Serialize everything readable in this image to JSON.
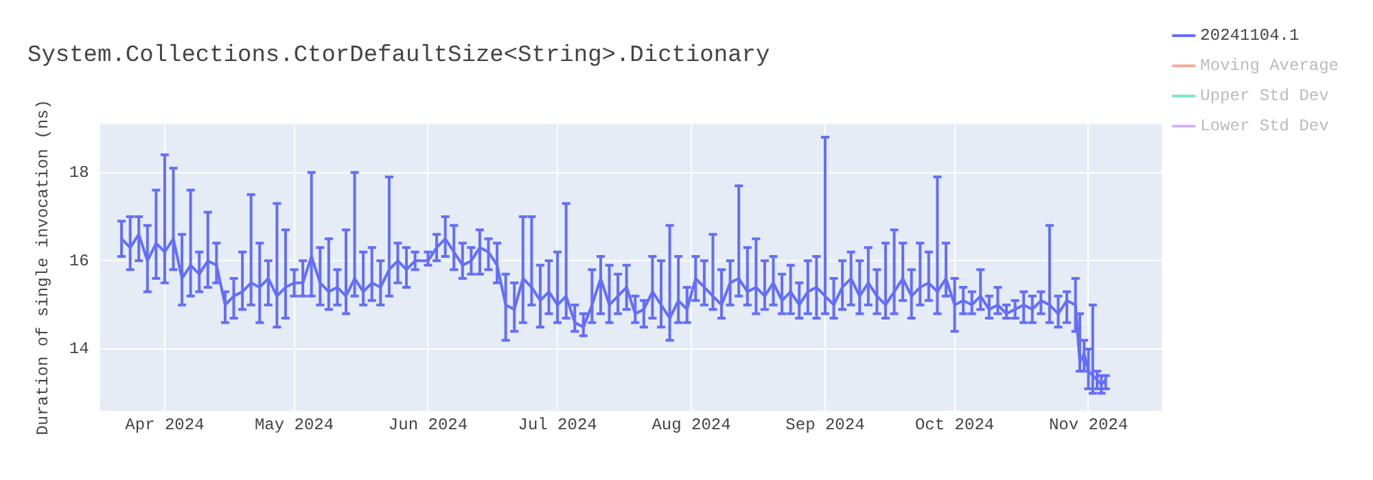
{
  "chart_data": {
    "type": "line",
    "title": "System.Collections.CtorDefaultSize<String>.Dictionary",
    "ylabel": "Duration of single invocation (ns)",
    "xlim": [
      "2024-03-17",
      "2024-11-18"
    ],
    "xticks": [
      {
        "value": "2024-04-01",
        "label": "Apr 2024"
      },
      {
        "value": "2024-05-01",
        "label": "May 2024"
      },
      {
        "value": "2024-06-01",
        "label": "Jun 2024"
      },
      {
        "value": "2024-07-01",
        "label": "Jul 2024"
      },
      {
        "value": "2024-08-01",
        "label": "Aug 2024"
      },
      {
        "value": "2024-09-01",
        "label": "Sep 2024"
      },
      {
        "value": "2024-10-01",
        "label": "Oct 2024"
      },
      {
        "value": "2024-11-01",
        "label": "Nov 2024"
      }
    ],
    "ylim": [
      12.6,
      19.1
    ],
    "yticks": [
      14,
      16,
      18
    ],
    "grid": true,
    "legend": "right",
    "marker": "none",
    "line_style": "solid",
    "x": [
      "2024-03-22",
      "2024-03-24",
      "2024-03-26",
      "2024-03-28",
      "2024-03-30",
      "2024-04-01",
      "2024-04-03",
      "2024-04-05",
      "2024-04-07",
      "2024-04-09",
      "2024-04-11",
      "2024-04-13",
      "2024-04-15",
      "2024-04-17",
      "2024-04-19",
      "2024-04-21",
      "2024-04-23",
      "2024-04-25",
      "2024-04-27",
      "2024-04-29",
      "2024-05-01",
      "2024-05-03",
      "2024-05-05",
      "2024-05-07",
      "2024-05-09",
      "2024-05-11",
      "2024-05-13",
      "2024-05-15",
      "2024-05-17",
      "2024-05-19",
      "2024-05-21",
      "2024-05-23",
      "2024-05-25",
      "2024-05-27",
      "2024-05-29",
      "2024-06-01",
      "2024-06-03",
      "2024-06-05",
      "2024-06-07",
      "2024-06-09",
      "2024-06-11",
      "2024-06-13",
      "2024-06-15",
      "2024-06-17",
      "2024-06-19",
      "2024-06-21",
      "2024-06-23",
      "2024-06-25",
      "2024-06-27",
      "2024-06-29",
      "2024-07-01",
      "2024-07-03",
      "2024-07-05",
      "2024-07-07",
      "2024-07-09",
      "2024-07-11",
      "2024-07-13",
      "2024-07-15",
      "2024-07-17",
      "2024-07-19",
      "2024-07-21",
      "2024-07-23",
      "2024-07-25",
      "2024-07-27",
      "2024-07-29",
      "2024-07-31",
      "2024-08-02",
      "2024-08-04",
      "2024-08-06",
      "2024-08-08",
      "2024-08-10",
      "2024-08-12",
      "2024-08-14",
      "2024-08-16",
      "2024-08-18",
      "2024-08-20",
      "2024-08-22",
      "2024-08-24",
      "2024-08-26",
      "2024-08-28",
      "2024-08-30",
      "2024-09-01",
      "2024-09-03",
      "2024-09-05",
      "2024-09-07",
      "2024-09-09",
      "2024-09-11",
      "2024-09-13",
      "2024-09-15",
      "2024-09-17",
      "2024-09-19",
      "2024-09-21",
      "2024-09-23",
      "2024-09-25",
      "2024-09-27",
      "2024-09-29",
      "2024-10-01",
      "2024-10-03",
      "2024-10-05",
      "2024-10-07",
      "2024-10-09",
      "2024-10-11",
      "2024-10-13",
      "2024-10-15",
      "2024-10-17",
      "2024-10-19",
      "2024-10-21",
      "2024-10-23",
      "2024-10-25",
      "2024-10-27",
      "2024-10-29",
      "2024-10-30",
      "2024-10-31",
      "2024-11-01",
      "2024-11-02",
      "2024-11-03",
      "2024-11-04",
      "2024-11-05"
    ],
    "series": [
      {
        "name": "20241104.1",
        "color": "#636efa",
        "values": [
          16.5,
          16.3,
          16.6,
          16.0,
          16.4,
          16.2,
          16.5,
          15.6,
          15.9,
          15.7,
          16.0,
          15.9,
          15.0,
          15.2,
          15.3,
          15.5,
          15.4,
          15.6,
          15.2,
          15.4,
          15.5,
          15.5,
          16.1,
          15.5,
          15.3,
          15.4,
          15.2,
          15.6,
          15.3,
          15.5,
          15.4,
          15.8,
          16.0,
          15.8,
          16.0,
          16.0,
          16.3,
          16.5,
          16.2,
          15.9,
          16.0,
          16.3,
          16.2,
          15.9,
          15.0,
          14.9,
          15.6,
          15.4,
          15.1,
          15.3,
          15.0,
          15.2,
          14.6,
          14.5,
          15.0,
          15.6,
          15.0,
          15.2,
          15.4,
          14.8,
          14.9,
          15.3,
          15.0,
          14.7,
          15.1,
          14.9,
          15.6,
          15.4,
          15.2,
          15.0,
          15.5,
          15.6,
          15.3,
          15.4,
          15.2,
          15.5,
          15.1,
          15.3,
          15.0,
          15.3,
          15.4,
          15.2,
          15.0,
          15.4,
          15.6,
          15.2,
          15.5,
          15.2,
          15.0,
          15.3,
          15.6,
          15.2,
          15.4,
          15.5,
          15.3,
          15.6,
          15.0,
          15.1,
          15.0,
          15.2,
          14.9,
          15.0,
          14.8,
          14.9,
          15.0,
          14.9,
          15.1,
          15.0,
          14.8,
          15.1,
          15.0,
          13.7,
          13.9,
          13.5,
          13.4,
          13.3,
          13.2,
          13.3
        ],
        "errors": [
          [
            16.1,
            16.9
          ],
          [
            15.8,
            17.0
          ],
          [
            16.0,
            17.0
          ],
          [
            15.3,
            16.8
          ],
          [
            15.6,
            17.6
          ],
          [
            15.5,
            18.4
          ],
          [
            15.8,
            18.1
          ],
          [
            15.0,
            16.6
          ],
          [
            15.2,
            17.6
          ],
          [
            15.3,
            16.2
          ],
          [
            15.4,
            17.1
          ],
          [
            15.5,
            16.4
          ],
          [
            14.6,
            15.3
          ],
          [
            14.7,
            15.6
          ],
          [
            14.9,
            16.2
          ],
          [
            15.0,
            17.5
          ],
          [
            14.6,
            16.4
          ],
          [
            15.0,
            16.0
          ],
          [
            14.5,
            17.3
          ],
          [
            14.7,
            16.7
          ],
          [
            15.2,
            15.8
          ],
          [
            15.2,
            16.0
          ],
          [
            15.2,
            18.0
          ],
          [
            15.0,
            16.3
          ],
          [
            14.9,
            16.5
          ],
          [
            15.0,
            15.8
          ],
          [
            14.8,
            16.7
          ],
          [
            15.2,
            18.0
          ],
          [
            15.0,
            16.2
          ],
          [
            15.1,
            16.3
          ],
          [
            15.0,
            16.0
          ],
          [
            15.2,
            17.9
          ],
          [
            15.5,
            16.4
          ],
          [
            15.4,
            16.3
          ],
          [
            15.8,
            16.2
          ],
          [
            15.9,
            16.2
          ],
          [
            16.0,
            16.6
          ],
          [
            16.1,
            17.0
          ],
          [
            15.8,
            16.8
          ],
          [
            15.6,
            16.4
          ],
          [
            15.7,
            16.3
          ],
          [
            15.7,
            16.7
          ],
          [
            15.8,
            16.5
          ],
          [
            15.5,
            16.4
          ],
          [
            14.2,
            15.7
          ],
          [
            14.4,
            15.5
          ],
          [
            14.6,
            17.0
          ],
          [
            15.0,
            17.0
          ],
          [
            14.5,
            15.9
          ],
          [
            14.8,
            16.0
          ],
          [
            14.6,
            16.2
          ],
          [
            14.7,
            17.3
          ],
          [
            14.4,
            15.0
          ],
          [
            14.3,
            14.8
          ],
          [
            14.6,
            15.8
          ],
          [
            14.8,
            16.1
          ],
          [
            14.6,
            15.9
          ],
          [
            14.8,
            15.7
          ],
          [
            14.9,
            15.9
          ],
          [
            14.6,
            15.2
          ],
          [
            14.5,
            15.1
          ],
          [
            14.7,
            16.1
          ],
          [
            14.5,
            16.0
          ],
          [
            14.2,
            16.8
          ],
          [
            14.6,
            16.1
          ],
          [
            14.6,
            15.4
          ],
          [
            15.1,
            16.1
          ],
          [
            15.0,
            16.0
          ],
          [
            14.9,
            16.6
          ],
          [
            14.7,
            15.8
          ],
          [
            15.0,
            16.0
          ],
          [
            15.2,
            17.7
          ],
          [
            15.0,
            16.3
          ],
          [
            14.8,
            16.5
          ],
          [
            14.9,
            16.0
          ],
          [
            15.0,
            16.1
          ],
          [
            14.8,
            15.7
          ],
          [
            14.8,
            15.9
          ],
          [
            14.7,
            15.5
          ],
          [
            14.8,
            16.0
          ],
          [
            14.7,
            16.1
          ],
          [
            14.8,
            18.8
          ],
          [
            14.7,
            15.6
          ],
          [
            14.9,
            16.0
          ],
          [
            15.0,
            16.2
          ],
          [
            14.8,
            16.0
          ],
          [
            15.0,
            16.3
          ],
          [
            14.8,
            15.8
          ],
          [
            14.7,
            16.4
          ],
          [
            14.8,
            16.7
          ],
          [
            15.1,
            16.4
          ],
          [
            14.7,
            15.8
          ],
          [
            15.0,
            16.4
          ],
          [
            15.1,
            16.2
          ],
          [
            14.8,
            17.9
          ],
          [
            15.2,
            16.4
          ],
          [
            14.4,
            15.6
          ],
          [
            14.8,
            15.4
          ],
          [
            14.8,
            15.3
          ],
          [
            14.9,
            15.8
          ],
          [
            14.7,
            15.2
          ],
          [
            14.8,
            15.4
          ],
          [
            14.7,
            15.0
          ],
          [
            14.7,
            15.1
          ],
          [
            14.6,
            15.3
          ],
          [
            14.6,
            15.2
          ],
          [
            14.8,
            15.3
          ],
          [
            14.6,
            16.8
          ],
          [
            14.5,
            15.2
          ],
          [
            14.6,
            15.3
          ],
          [
            14.4,
            15.6
          ],
          [
            13.5,
            14.8
          ],
          [
            13.5,
            14.2
          ],
          [
            13.1,
            14.0
          ],
          [
            13.0,
            15.0
          ],
          [
            13.1,
            13.5
          ],
          [
            13.0,
            13.4
          ],
          [
            13.1,
            13.4
          ]
        ]
      },
      {
        "name": "Moving Average",
        "color": "#ef553b",
        "values": [
          null,
          null,
          null,
          null,
          null,
          null,
          null,
          null,
          null,
          null,
          null,
          null,
          null,
          null,
          null,
          null,
          null,
          null,
          null,
          null,
          null,
          null,
          null,
          null,
          null,
          null,
          null,
          null,
          null,
          null,
          null,
          null,
          null,
          null,
          null,
          null,
          null,
          null,
          null,
          null,
          null,
          null,
          null,
          null,
          null,
          null,
          null,
          null,
          null,
          null,
          null,
          null,
          null,
          null,
          null,
          null,
          null,
          null,
          null,
          null,
          null,
          null,
          null,
          null,
          null,
          null,
          null,
          null,
          null,
          null,
          null,
          null,
          null,
          null,
          null,
          null,
          null,
          null,
          null,
          null,
          null,
          null,
          null,
          null,
          null,
          null,
          null,
          null,
          null,
          null,
          null,
          null,
          null,
          null,
          null,
          null,
          null,
          null,
          null,
          null,
          null,
          null,
          null,
          null,
          null,
          null,
          null,
          null,
          null,
          null,
          null,
          null,
          null,
          null,
          null,
          null,
          null,
          null
        ]
      },
      {
        "name": "Upper Std Dev",
        "color": "#00cc96",
        "values": [
          null,
          null,
          null,
          null,
          null,
          null,
          null,
          null,
          null,
          null,
          null,
          null,
          null,
          null,
          null,
          null,
          null,
          null,
          null,
          null,
          null,
          null,
          null,
          null,
          null,
          null,
          null,
          null,
          null,
          null,
          null,
          null,
          null,
          null,
          null,
          null,
          null,
          null,
          null,
          null,
          null,
          null,
          null,
          null,
          null,
          null,
          null,
          null,
          null,
          null,
          null,
          null,
          null,
          null,
          null,
          null,
          null,
          null,
          null,
          null,
          null,
          null,
          null,
          null,
          null,
          null,
          null,
          null,
          null,
          null,
          null,
          null,
          null,
          null,
          null,
          null,
          null,
          null,
          null,
          null,
          null,
          null,
          null,
          null,
          null,
          null,
          null,
          null,
          null,
          null,
          null,
          null,
          null,
          null,
          null,
          null,
          null,
          null,
          null,
          null,
          null,
          null,
          null,
          null,
          null,
          null,
          null,
          null,
          null,
          null,
          null,
          null,
          null,
          null,
          null,
          null,
          null,
          null
        ]
      },
      {
        "name": "Lower Std Dev",
        "color": "#ab63fa",
        "values": [
          null,
          null,
          null,
          null,
          null,
          null,
          null,
          null,
          null,
          null,
          null,
          null,
          null,
          null,
          null,
          null,
          null,
          null,
          null,
          null,
          null,
          null,
          null,
          null,
          null,
          null,
          null,
          null,
          null,
          null,
          null,
          null,
          null,
          null,
          null,
          null,
          null,
          null,
          null,
          null,
          null,
          null,
          null,
          null,
          null,
          null,
          null,
          null,
          null,
          null,
          null,
          null,
          null,
          null,
          null,
          null,
          null,
          null,
          null,
          null,
          null,
          null,
          null,
          null,
          null,
          null,
          null,
          null,
          null,
          null,
          null,
          null,
          null,
          null,
          null,
          null,
          null,
          null,
          null,
          null,
          null,
          null,
          null,
          null,
          null,
          null,
          null,
          null,
          null,
          null,
          null,
          null,
          null,
          null,
          null,
          null,
          null,
          null,
          null,
          null,
          null,
          null,
          null,
          null,
          null,
          null,
          null,
          null,
          null,
          null,
          null,
          null,
          null,
          null,
          null,
          null,
          null,
          null
        ]
      }
    ]
  }
}
